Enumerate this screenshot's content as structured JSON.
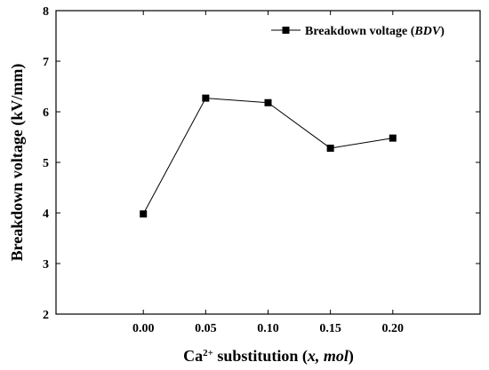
{
  "chart_data": {
    "type": "line",
    "x": [
      0.0,
      0.05,
      0.1,
      0.15,
      0.2
    ],
    "series": [
      {
        "name_main": "Breakdown voltage (",
        "name_italic": "BDV",
        "name_close": ")",
        "values": [
          3.98,
          6.27,
          6.18,
          5.28,
          5.48
        ],
        "marker": "square",
        "color": "#000000"
      }
    ],
    "xlim": [
      -0.07,
      0.27
    ],
    "ylim": [
      2,
      8
    ],
    "xticks": [
      0.0,
      0.05,
      0.1,
      0.15,
      0.2
    ],
    "xtick_labels": [
      "0.00",
      "0.05",
      "0.10",
      "0.15",
      "0.20"
    ],
    "yticks": [
      2,
      3,
      4,
      5,
      6,
      7,
      8
    ],
    "ytick_labels": [
      "2",
      "3",
      "4",
      "5",
      "6",
      "7",
      "8"
    ],
    "xlabel": {
      "prefix": "Ca",
      "sup": "2+",
      "middle": " substitution (",
      "italic": "x, mol",
      "suffix": ")"
    },
    "ylabel": "Breakdown voltage (kV/mm)",
    "grid": false,
    "legend_position": "top-right"
  }
}
